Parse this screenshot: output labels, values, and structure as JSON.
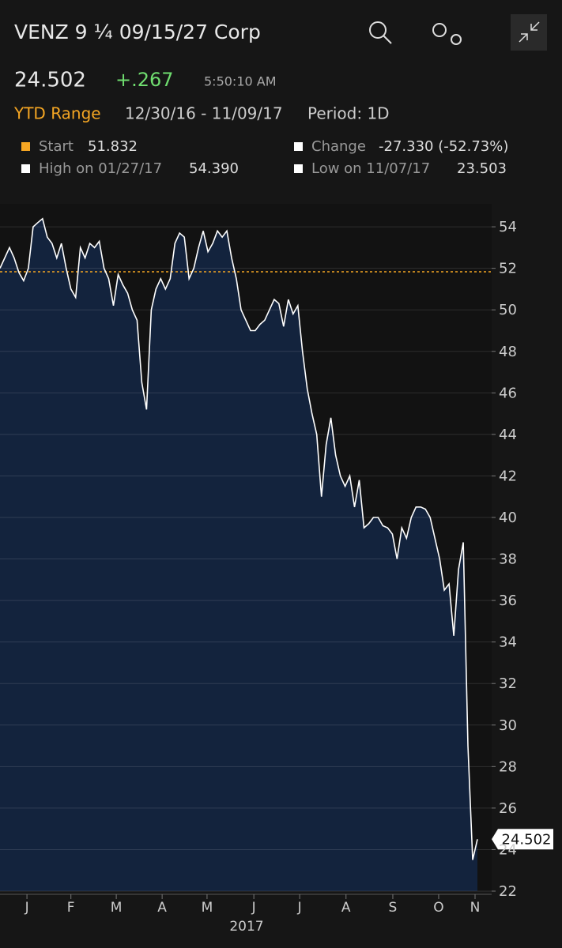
{
  "header": {
    "title": "VENZ 9 ¼ 09/15/27 Corp",
    "price": "24.502",
    "change": "+.267",
    "time": "5:50:10 AM",
    "range_label": "YTD Range",
    "range": "12/30/16 - 11/09/17",
    "period": "Period: 1D",
    "stats": [
      {
        "label": "Start",
        "value": "51.832"
      },
      {
        "label": "Change",
        "value": "-27.330 (-52.73%)"
      },
      {
        "label": "High on 01/27/17",
        "value": "54.390"
      },
      {
        "label": "Low on 11/07/17",
        "value": "23.503"
      }
    ]
  },
  "chart_data": {
    "type": "area",
    "color": "#ffffff",
    "fill": "#13233d",
    "reference": 51.832,
    "reference_color": "#f5a623",
    "values": [
      52,
      52.5,
      53,
      52.5,
      51.8,
      51.4,
      52,
      54,
      54.2,
      54.39,
      53.5,
      53.2,
      52.5,
      53.2,
      52,
      51,
      50.6,
      53,
      52.5,
      53.2,
      53,
      53.3,
      52,
      51.5,
      50.2,
      51.7,
      51.2,
      50.8,
      50,
      49.5,
      46.5,
      45.2,
      50,
      51,
      51.5,
      51,
      51.5,
      53.2,
      53.7,
      53.5,
      51.5,
      52,
      53,
      53.8,
      52.8,
      53.2,
      53.8,
      53.5,
      53.8,
      52.5,
      51.5,
      50,
      49.5,
      49,
      49,
      49.3,
      49.5,
      50,
      50.5,
      50.3,
      49.2,
      50.5,
      49.8,
      50.2,
      48,
      46.2,
      45,
      44,
      41,
      43.5,
      44.8,
      43,
      42,
      41.5,
      42,
      40.5,
      41.8,
      39.5,
      39.7,
      40,
      40,
      39.6,
      39.5,
      39.2,
      38,
      39.5,
      39,
      40,
      40.5,
      40.5,
      40.4,
      40,
      39,
      38,
      36.5,
      36.8,
      34.3,
      37.5,
      38.8,
      29,
      23.503,
      24.502
    ],
    "xlim": [
      0,
      101
    ],
    "xticks": [
      {
        "value": 5.7,
        "label": "J"
      },
      {
        "value": 15,
        "label": "F"
      },
      {
        "value": 24.6,
        "label": "M"
      },
      {
        "value": 34.3,
        "label": "A"
      },
      {
        "value": 43.8,
        "label": "M"
      },
      {
        "value": 53.7,
        "label": "J"
      },
      {
        "value": 63.4,
        "label": "J"
      },
      {
        "value": 73.2,
        "label": "A"
      },
      {
        "value": 83.1,
        "label": "S"
      },
      {
        "value": 92.8,
        "label": "O"
      },
      {
        "value": 100.5,
        "label": "N"
      }
    ],
    "xlabel": "2017",
    "ylim": [
      22,
      55
    ],
    "yticks": [
      22,
      24,
      26,
      28,
      30,
      32,
      34,
      36,
      38,
      40,
      42,
      44,
      46,
      48,
      50,
      52,
      54
    ],
    "grid": true
  }
}
